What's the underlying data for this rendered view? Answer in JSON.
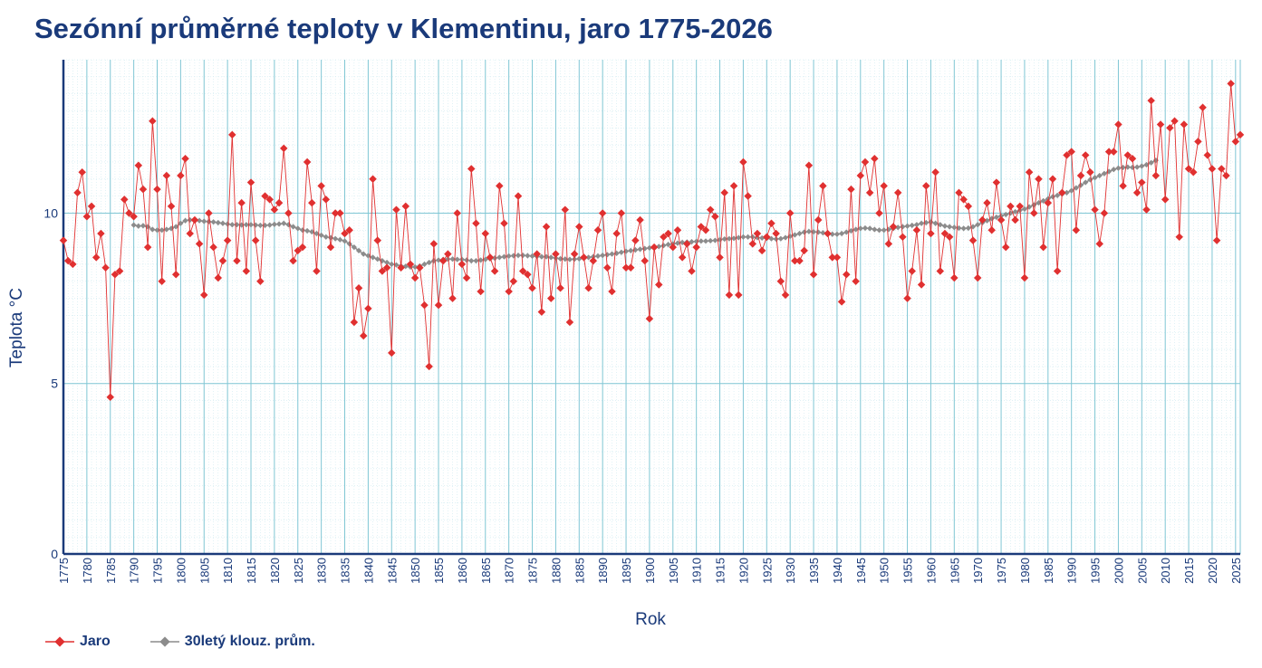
{
  "chart_data": {
    "type": "line",
    "title": "Sezónní průměrné teploty v Klementinu, jaro 1775-2026",
    "xlabel": "Rok",
    "ylabel": "Teplota  °C",
    "xlim": [
      1775,
      2026
    ],
    "ylim": [
      0,
      14.5
    ],
    "y_ticks": [
      0,
      5,
      10
    ],
    "x_tick_step": 5,
    "grid": true,
    "legend_position": "bottom-left",
    "colors": {
      "title": "#1a3a7a",
      "axis": "#1a3a7a",
      "grid_major": "#7fc6d4",
      "grid_minor": "#cde9ef",
      "series_jaro": "#e03030",
      "series_avg": "#8c8c8c"
    },
    "series": [
      {
        "name": "Jaro",
        "color": "#e03030",
        "marker": "diamond",
        "x_start": 1775,
        "values": [
          9.2,
          8.6,
          8.5,
          10.6,
          11.2,
          9.9,
          10.2,
          8.7,
          9.4,
          8.4,
          4.6,
          8.2,
          8.3,
          10.4,
          10.0,
          9.9,
          11.4,
          10.7,
          9.0,
          12.7,
          10.7,
          8.0,
          11.1,
          10.2,
          8.2,
          11.1,
          11.6,
          9.4,
          9.8,
          9.1,
          7.6,
          10.0,
          9.0,
          8.1,
          8.6,
          9.2,
          12.3,
          8.6,
          10.3,
          8.3,
          10.9,
          9.2,
          8.0,
          10.5,
          10.4,
          10.1,
          10.3,
          11.9,
          10.0,
          8.6,
          8.9,
          9.0,
          11.5,
          10.3,
          8.3,
          10.8,
          10.4,
          9.0,
          10.0,
          10.0,
          9.4,
          9.5,
          6.8,
          7.8,
          6.4,
          7.2,
          11.0,
          9.2,
          8.3,
          8.4,
          5.9,
          10.1,
          8.4,
          10.2,
          8.5,
          8.1,
          8.4,
          7.3,
          5.5,
          9.1,
          7.3,
          8.6,
          8.8,
          7.5,
          10.0,
          8.5,
          8.1,
          11.3,
          9.7,
          7.7,
          9.4,
          8.7,
          8.3,
          10.8,
          9.7,
          7.7,
          8.0,
          10.5,
          8.3,
          8.2,
          7.8,
          8.8,
          7.1,
          9.6,
          7.5,
          8.8,
          7.8,
          10.1,
          6.8,
          8.8,
          9.6,
          8.7,
          7.8,
          8.6,
          9.5,
          10.0,
          8.4,
          7.7,
          9.4,
          10.0,
          8.4,
          8.4,
          9.2,
          9.8,
          8.6,
          6.9,
          9.0,
          7.9,
          9.3,
          9.4,
          9.0,
          9.5,
          8.7,
          9.1,
          8.3,
          9.0,
          9.6,
          9.5,
          10.1,
          9.9,
          8.7,
          10.6,
          7.6,
          10.8,
          7.6,
          11.5,
          10.5,
          9.1,
          9.4,
          8.9,
          9.3,
          9.7,
          9.4,
          8.0,
          7.6,
          10.0,
          8.6,
          8.6,
          8.9,
          11.4,
          8.2,
          9.8,
          10.8,
          9.4,
          8.7,
          8.7,
          7.4,
          8.2,
          10.7,
          8.0,
          11.1,
          11.5,
          10.6,
          11.6,
          10.0,
          10.8,
          9.1,
          9.6,
          10.6,
          9.3,
          7.5,
          8.3,
          9.5,
          7.9,
          10.8,
          9.4,
          11.2,
          8.3,
          9.4,
          9.3,
          8.1,
          10.6,
          10.4,
          10.2,
          9.2,
          8.1,
          9.8,
          10.3,
          9.5,
          10.9,
          9.8,
          9.0,
          10.2,
          9.8,
          10.2,
          8.1,
          11.2,
          10.0,
          11.0,
          9.0,
          10.3,
          11.0,
          8.3,
          10.6,
          11.7,
          11.8,
          9.5,
          11.1,
          11.7,
          11.2,
          10.1,
          9.1,
          10.0,
          11.8,
          11.8,
          12.6,
          10.8,
          11.7,
          11.6,
          10.6,
          10.9,
          10.1,
          13.3,
          11.1,
          12.6,
          10.4,
          12.5,
          12.7,
          9.3,
          12.6,
          11.3,
          11.2,
          12.1,
          13.1,
          11.7,
          11.3,
          9.2,
          11.3,
          11.1,
          13.8,
          12.1,
          12.3
        ]
      },
      {
        "name": "30letý klouz. prům.",
        "color": "#8c8c8c",
        "marker": "diamond",
        "x_start": 1790,
        "values": [
          9.65,
          9.62,
          9.63,
          9.6,
          9.52,
          9.5,
          9.5,
          9.52,
          9.55,
          9.6,
          9.7,
          9.78,
          9.8,
          9.8,
          9.78,
          9.76,
          9.75,
          9.74,
          9.72,
          9.7,
          9.68,
          9.66,
          9.66,
          9.65,
          9.66,
          9.66,
          9.65,
          9.64,
          9.64,
          9.65,
          9.67,
          9.68,
          9.7,
          9.66,
          9.6,
          9.55,
          9.5,
          9.48,
          9.45,
          9.4,
          9.35,
          9.3,
          9.28,
          9.25,
          9.22,
          9.18,
          9.1,
          9.0,
          8.9,
          8.8,
          8.75,
          8.7,
          8.65,
          8.6,
          8.55,
          8.5,
          8.48,
          8.45,
          8.44,
          8.42,
          8.42,
          8.45,
          8.5,
          8.55,
          8.6,
          8.62,
          8.64,
          8.65,
          8.65,
          8.64,
          8.64,
          8.62,
          8.6,
          8.6,
          8.62,
          8.64,
          8.66,
          8.68,
          8.7,
          8.72,
          8.74,
          8.75,
          8.76,
          8.76,
          8.75,
          8.74,
          8.73,
          8.72,
          8.72,
          8.7,
          8.68,
          8.66,
          8.65,
          8.64,
          8.65,
          8.66,
          8.68,
          8.7,
          8.72,
          8.74,
          8.76,
          8.78,
          8.8,
          8.82,
          8.85,
          8.88,
          8.9,
          8.92,
          8.94,
          8.96,
          8.98,
          9.0,
          9.02,
          9.05,
          9.08,
          9.1,
          9.12,
          9.14,
          9.15,
          9.16,
          9.17,
          9.18,
          9.18,
          9.19,
          9.2,
          9.22,
          9.24,
          9.25,
          9.26,
          9.28,
          9.3,
          9.3,
          9.3,
          9.28,
          9.27,
          9.26,
          9.25,
          9.24,
          9.25,
          9.28,
          9.32,
          9.36,
          9.4,
          9.44,
          9.46,
          9.45,
          9.44,
          9.42,
          9.4,
          9.38,
          9.38,
          9.4,
          9.44,
          9.48,
          9.52,
          9.55,
          9.56,
          9.55,
          9.52,
          9.5,
          9.5,
          9.52,
          9.55,
          9.58,
          9.6,
          9.62,
          9.64,
          9.66,
          9.7,
          9.72,
          9.74,
          9.7,
          9.66,
          9.62,
          9.6,
          9.58,
          9.56,
          9.55,
          9.56,
          9.6,
          9.66,
          9.72,
          9.78,
          9.84,
          9.88,
          9.92,
          9.96,
          10.0,
          10.04,
          10.08,
          10.12,
          10.18,
          10.24,
          10.3,
          10.36,
          10.42,
          10.48,
          10.52,
          10.56,
          10.6,
          10.66,
          10.74,
          10.82,
          10.9,
          10.98,
          11.04,
          11.1,
          11.16,
          11.22,
          11.28,
          11.32,
          11.34,
          11.35,
          11.34,
          11.35,
          11.38,
          11.42,
          11.48,
          11.55
        ]
      }
    ]
  }
}
